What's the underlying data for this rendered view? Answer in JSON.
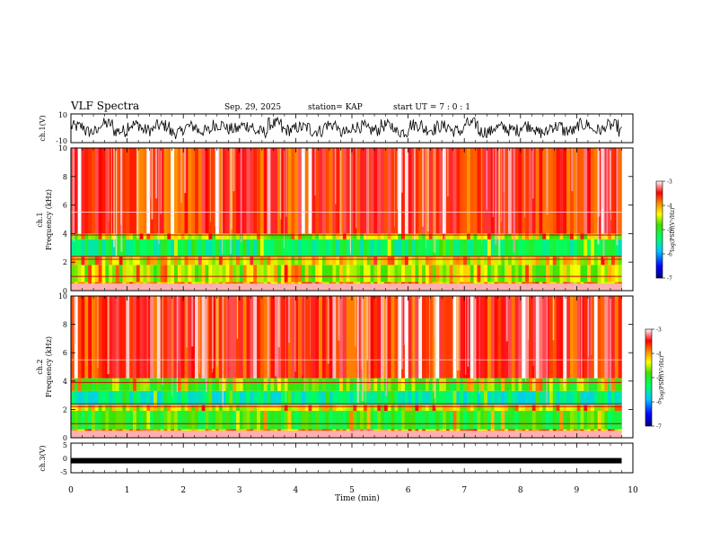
{
  "header": {
    "title": "VLF Spectra",
    "date": "Sep. 29, 2025",
    "station": "station= KAP",
    "start": "start  UT  =   7 : 0  : 1"
  },
  "chart_data": [
    {
      "type": "line",
      "panel": "ch1_waveform",
      "ylabel": "ch.1(V)",
      "ylim": [
        -10,
        10
      ],
      "yticks": [
        "10",
        "-10"
      ],
      "x": [
        0,
        0.25,
        0.5,
        0.75,
        1,
        1.25,
        1.5,
        1.75,
        2,
        2.25,
        2.5,
        2.75,
        3,
        3.25,
        3.5,
        3.75,
        4,
        4.25,
        4.5,
        4.75,
        5,
        5.25,
        5.5,
        5.75,
        6,
        6.25,
        6.5,
        6.75,
        7,
        7.25,
        7.5,
        7.75,
        8,
        8.25,
        8.5,
        8.75,
        9,
        9.25,
        9.5,
        9.75
      ],
      "values": [
        2,
        -4,
        5,
        -3,
        4,
        -2,
        3,
        -5,
        2,
        -3,
        4,
        -1,
        3,
        -4,
        5,
        -2,
        1,
        -3,
        4,
        -5,
        2,
        -2,
        3,
        -4,
        4,
        -1,
        2,
        -3,
        5,
        -4,
        1,
        -2,
        3,
        -5,
        2,
        -3,
        4,
        -2,
        3,
        -4
      ],
      "note": "noisy continuous waveform, amplitude mostly within ±6 V"
    },
    {
      "type": "heatmap",
      "panel": "ch1_spectrogram",
      "ylabel": "Frequency (kHz)",
      "channel_label": "ch.1",
      "xlim": [
        0,
        10
      ],
      "ylim": [
        0,
        10
      ],
      "yticks": [
        "0",
        "2",
        "4",
        "6",
        "8",
        "10"
      ],
      "bands": [
        {
          "from": 0,
          "to": 0.6,
          "level": -4.2
        },
        {
          "from": 0.6,
          "to": 1.8,
          "level": -4.6
        },
        {
          "from": 1.8,
          "to": 2.4,
          "level": -4.4
        },
        {
          "from": 2.4,
          "to": 3.6,
          "level": -5.3
        },
        {
          "from": 3.6,
          "to": 4.0,
          "level": -4.6
        },
        {
          "from": 4.0,
          "to": 10,
          "level": -3.8
        }
      ],
      "colorbar_label": "log(PSD)(V²/Hz)",
      "colorbar_ticks": [
        "-3",
        "-4",
        "-5",
        "-6",
        "-7"
      ],
      "colorbar_range": [
        -7,
        -3
      ]
    },
    {
      "type": "heatmap",
      "panel": "ch2_spectrogram",
      "ylabel": "Frequency (kHz)",
      "channel_label": "ch.2",
      "xlim": [
        0,
        10
      ],
      "ylim": [
        0,
        10
      ],
      "yticks": [
        "0",
        "2",
        "4",
        "6",
        "8",
        "10"
      ],
      "bands": [
        {
          "from": 0,
          "to": 0.6,
          "level": -4.2
        },
        {
          "from": 0.6,
          "to": 1.9,
          "level": -5.0
        },
        {
          "from": 1.9,
          "to": 2.3,
          "level": -4.5
        },
        {
          "from": 2.3,
          "to": 3.3,
          "level": -5.5
        },
        {
          "from": 3.3,
          "to": 4.2,
          "level": -4.8
        },
        {
          "from": 4.2,
          "to": 10,
          "level": -3.8
        }
      ],
      "colorbar_label": "log(PSD)(V²/Hz)",
      "colorbar_ticks": [
        "-3",
        "-4",
        "-5",
        "-6",
        "-7"
      ],
      "colorbar_range": [
        -7,
        -3
      ]
    },
    {
      "type": "line",
      "panel": "ch3_signal",
      "ylabel": "ch.3(V)",
      "ylim": [
        -5,
        5
      ],
      "yticks": [
        "5",
        "0",
        "-5"
      ],
      "x": [
        0,
        9.8
      ],
      "values": [
        -0.8,
        -0.8
      ],
      "note": "thick flat band near -0.8 V"
    }
  ],
  "xaxis": {
    "label": "Time (min)",
    "ticks": [
      "0",
      "1",
      "2",
      "3",
      "4",
      "5",
      "6",
      "7",
      "8",
      "9",
      "10"
    ],
    "xlim": [
      0,
      10
    ]
  },
  "colors": {
    "high": "#ff0000",
    "mid": "#00e000",
    "low": "#0000c0"
  }
}
